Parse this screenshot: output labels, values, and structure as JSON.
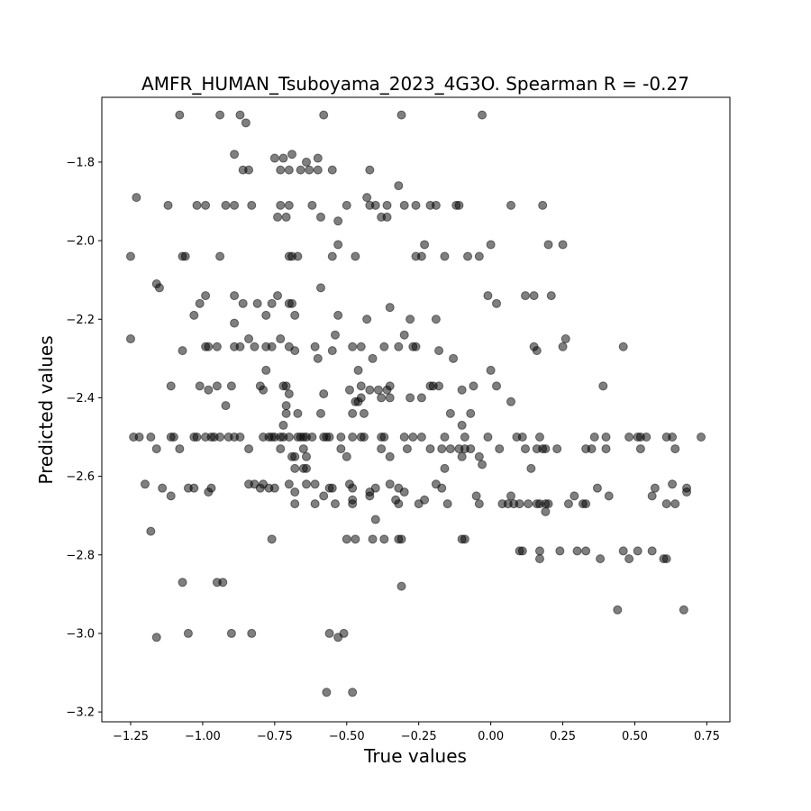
{
  "chart_data": {
    "type": "scatter",
    "title": "AMFR_HUMAN_Tsuboyama_2023_4G3O. Spearman R = -0.27",
    "xlabel": "True values",
    "ylabel": "Predicted values",
    "xlim": [
      -1.35,
      0.83
    ],
    "ylim": [
      -3.225,
      -1.635
    ],
    "x_ticks": [
      -1.25,
      -1.0,
      -0.75,
      -0.5,
      -0.25,
      0.0,
      0.25,
      0.5,
      0.75
    ],
    "x_tick_labels": [
      "−1.25",
      "−1.00",
      "−0.75",
      "−0.50",
      "−0.25",
      "0.00",
      "0.25",
      "0.50",
      "0.75"
    ],
    "y_ticks": [
      -3.2,
      -3.0,
      -2.8,
      -2.6,
      -2.4,
      -2.2,
      -2.0,
      -1.8
    ],
    "y_tick_labels": [
      "−3.2",
      "−3.0",
      "−2.8",
      "−2.6",
      "−2.4",
      "−2.2",
      "−2.0",
      "−1.8"
    ],
    "grid": false,
    "marker_color": "#000000",
    "marker_alpha": 0.5,
    "points": [
      [
        -1.08,
        -1.68
      ],
      [
        -0.94,
        -1.68
      ],
      [
        -0.87,
        -1.68
      ],
      [
        -0.58,
        -1.68
      ],
      [
        -0.31,
        -1.68
      ],
      [
        -0.03,
        -1.68
      ],
      [
        -0.85,
        -1.7
      ],
      [
        -0.89,
        -1.78
      ],
      [
        -0.72,
        -1.79
      ],
      [
        -0.69,
        -1.78
      ],
      [
        -0.75,
        -1.79
      ],
      [
        -0.6,
        -1.79
      ],
      [
        -0.64,
        -1.8
      ],
      [
        -0.86,
        -1.82
      ],
      [
        -0.84,
        -1.82
      ],
      [
        -0.73,
        -1.82
      ],
      [
        -0.7,
        -1.82
      ],
      [
        -0.66,
        -1.82
      ],
      [
        -0.63,
        -1.82
      ],
      [
        -0.6,
        -1.82
      ],
      [
        -0.55,
        -1.82
      ],
      [
        -0.42,
        -1.82
      ],
      [
        -0.32,
        -1.86
      ],
      [
        -1.23,
        -1.89
      ],
      [
        -0.43,
        -1.89
      ],
      [
        -1.12,
        -1.91
      ],
      [
        -1.02,
        -1.91
      ],
      [
        -0.99,
        -1.91
      ],
      [
        -0.92,
        -1.91
      ],
      [
        -0.89,
        -1.91
      ],
      [
        -0.83,
        -1.91
      ],
      [
        -0.73,
        -1.91
      ],
      [
        -0.7,
        -1.91
      ],
      [
        -0.62,
        -1.91
      ],
      [
        -0.5,
        -1.91
      ],
      [
        -0.42,
        -1.91
      ],
      [
        -0.4,
        -1.91
      ],
      [
        -0.36,
        -1.91
      ],
      [
        -0.3,
        -1.91
      ],
      [
        -0.26,
        -1.91
      ],
      [
        -0.21,
        -1.91
      ],
      [
        -0.19,
        -1.91
      ],
      [
        -0.12,
        -1.91
      ],
      [
        -0.11,
        -1.91
      ],
      [
        0.07,
        -1.91
      ],
      [
        0.18,
        -1.91
      ],
      [
        -0.74,
        -1.94
      ],
      [
        -0.71,
        -1.94
      ],
      [
        -0.59,
        -1.94
      ],
      [
        -0.53,
        -1.95
      ],
      [
        -0.38,
        -1.94
      ],
      [
        -0.36,
        -1.94
      ],
      [
        -0.53,
        -2.01
      ],
      [
        -0.23,
        -2.01
      ],
      [
        0.0,
        -2.01
      ],
      [
        0.2,
        -2.01
      ],
      [
        0.25,
        -2.01
      ],
      [
        -1.25,
        -2.04
      ],
      [
        -1.07,
        -2.04
      ],
      [
        -1.06,
        -2.04
      ],
      [
        -0.94,
        -2.04
      ],
      [
        -0.7,
        -2.04
      ],
      [
        -0.69,
        -2.04
      ],
      [
        -0.67,
        -2.04
      ],
      [
        -0.55,
        -2.04
      ],
      [
        -0.47,
        -2.04
      ],
      [
        -0.26,
        -2.04
      ],
      [
        -0.24,
        -2.04
      ],
      [
        -0.16,
        -2.04
      ],
      [
        -0.08,
        -2.04
      ],
      [
        -0.04,
        -2.04
      ],
      [
        -1.16,
        -2.11
      ],
      [
        -1.15,
        -2.12
      ],
      [
        -0.59,
        -2.12
      ],
      [
        -0.99,
        -2.14
      ],
      [
        -0.89,
        -2.14
      ],
      [
        -0.74,
        -2.14
      ],
      [
        -0.01,
        -2.14
      ],
      [
        0.12,
        -2.14
      ],
      [
        0.15,
        -2.14
      ],
      [
        0.21,
        -2.14
      ],
      [
        -1.01,
        -2.16
      ],
      [
        -0.86,
        -2.16
      ],
      [
        -0.81,
        -2.16
      ],
      [
        -0.76,
        -2.16
      ],
      [
        -0.69,
        -2.16
      ],
      [
        -0.7,
        -2.16
      ],
      [
        0.02,
        -2.16
      ],
      [
        -0.35,
        -2.17
      ],
      [
        -1.03,
        -2.19
      ],
      [
        -0.78,
        -2.19
      ],
      [
        -0.68,
        -2.19
      ],
      [
        -0.53,
        -2.19
      ],
      [
        -0.43,
        -2.2
      ],
      [
        -0.28,
        -2.2
      ],
      [
        -0.19,
        -2.2
      ],
      [
        -0.89,
        -2.21
      ],
      [
        -1.25,
        -2.25
      ],
      [
        -0.84,
        -2.25
      ],
      [
        -0.78,
        -2.27
      ],
      [
        -0.54,
        -2.24
      ],
      [
        -0.3,
        -2.24
      ],
      [
        0.26,
        -2.25
      ],
      [
        -0.73,
        -2.25
      ],
      [
        -1.07,
        -2.28
      ],
      [
        -0.99,
        -2.27
      ],
      [
        -0.98,
        -2.27
      ],
      [
        -0.95,
        -2.27
      ],
      [
        -0.89,
        -2.27
      ],
      [
        -0.87,
        -2.27
      ],
      [
        -0.82,
        -2.27
      ],
      [
        -0.76,
        -2.27
      ],
      [
        -0.7,
        -2.27
      ],
      [
        -0.68,
        -2.28
      ],
      [
        -0.61,
        -2.27
      ],
      [
        -0.55,
        -2.28
      ],
      [
        -0.48,
        -2.27
      ],
      [
        -0.45,
        -2.27
      ],
      [
        -0.37,
        -2.27
      ],
      [
        -0.32,
        -2.27
      ],
      [
        -0.27,
        -2.27
      ],
      [
        -0.26,
        -2.27
      ],
      [
        -0.18,
        -2.28
      ],
      [
        0.15,
        -2.27
      ],
      [
        0.16,
        -2.28
      ],
      [
        0.25,
        -2.27
      ],
      [
        0.46,
        -2.27
      ],
      [
        -0.6,
        -2.3
      ],
      [
        -0.41,
        -2.3
      ],
      [
        -0.13,
        -2.3
      ],
      [
        -0.78,
        -2.33
      ],
      [
        -0.46,
        -2.33
      ],
      [
        0.0,
        -2.33
      ],
      [
        -1.11,
        -2.37
      ],
      [
        -1.01,
        -2.37
      ],
      [
        -0.98,
        -2.38
      ],
      [
        -0.95,
        -2.37
      ],
      [
        -0.9,
        -2.37
      ],
      [
        -0.8,
        -2.37
      ],
      [
        -0.79,
        -2.38
      ],
      [
        -0.72,
        -2.37
      ],
      [
        -0.71,
        -2.37
      ],
      [
        -0.49,
        -2.38
      ],
      [
        -0.45,
        -2.37
      ],
      [
        -0.42,
        -2.38
      ],
      [
        -0.39,
        -2.38
      ],
      [
        -0.36,
        -2.38
      ],
      [
        -0.35,
        -2.37
      ],
      [
        -0.21,
        -2.37
      ],
      [
        -0.2,
        -2.37
      ],
      [
        -0.18,
        -2.37
      ],
      [
        -0.1,
        -2.38
      ],
      [
        -0.06,
        -2.37
      ],
      [
        0.02,
        -2.37
      ],
      [
        0.39,
        -2.37
      ],
      [
        -0.7,
        -2.39
      ],
      [
        -0.58,
        -2.39
      ],
      [
        -0.38,
        -2.4
      ],
      [
        -0.35,
        -2.4
      ],
      [
        -0.28,
        -2.4
      ],
      [
        -0.24,
        -2.4
      ],
      [
        -0.45,
        -2.4
      ],
      [
        -0.47,
        -2.41
      ],
      [
        -0.46,
        -2.41
      ],
      [
        0.07,
        -2.41
      ],
      [
        -0.92,
        -2.42
      ],
      [
        -0.71,
        -2.42
      ],
      [
        -0.71,
        -2.44
      ],
      [
        -0.67,
        -2.44
      ],
      [
        -0.59,
        -2.44
      ],
      [
        -0.48,
        -2.44
      ],
      [
        -0.44,
        -2.44
      ],
      [
        -0.14,
        -2.44
      ],
      [
        -0.07,
        -2.44
      ],
      [
        -0.72,
        -2.47
      ],
      [
        -0.1,
        -2.47
      ],
      [
        -1.24,
        -2.5
      ],
      [
        -1.22,
        -2.5
      ],
      [
        -1.18,
        -2.5
      ],
      [
        -1.11,
        -2.5
      ],
      [
        -1.1,
        -2.5
      ],
      [
        -1.03,
        -2.5
      ],
      [
        -1.02,
        -2.5
      ],
      [
        -0.99,
        -2.5
      ],
      [
        -0.97,
        -2.5
      ],
      [
        -0.96,
        -2.5
      ],
      [
        -0.94,
        -2.5
      ],
      [
        -0.91,
        -2.5
      ],
      [
        -0.89,
        -2.5
      ],
      [
        -0.87,
        -2.5
      ],
      [
        -0.79,
        -2.5
      ],
      [
        -0.77,
        -2.5
      ],
      [
        -0.76,
        -2.5
      ],
      [
        -0.75,
        -2.5
      ],
      [
        -0.73,
        -2.5
      ],
      [
        -0.72,
        -2.5
      ],
      [
        -0.7,
        -2.5
      ],
      [
        -0.67,
        -2.5
      ],
      [
        -0.66,
        -2.5
      ],
      [
        -0.65,
        -2.5
      ],
      [
        -0.64,
        -2.5
      ],
      [
        -0.62,
        -2.5
      ],
      [
        -0.58,
        -2.5
      ],
      [
        -0.57,
        -2.5
      ],
      [
        -0.56,
        -2.5
      ],
      [
        -0.52,
        -2.5
      ],
      [
        -0.48,
        -2.5
      ],
      [
        -0.45,
        -2.5
      ],
      [
        -0.44,
        -2.5
      ],
      [
        -0.38,
        -2.5
      ],
      [
        -0.37,
        -2.5
      ],
      [
        -0.3,
        -2.5
      ],
      [
        -0.27,
        -2.5
      ],
      [
        -0.24,
        -2.5
      ],
      [
        -0.16,
        -2.5
      ],
      [
        -0.09,
        -2.5
      ],
      [
        -0.01,
        -2.5
      ],
      [
        0.09,
        -2.5
      ],
      [
        0.11,
        -2.5
      ],
      [
        0.17,
        -2.5
      ],
      [
        0.36,
        -2.5
      ],
      [
        0.4,
        -2.5
      ],
      [
        0.48,
        -2.5
      ],
      [
        0.51,
        -2.5
      ],
      [
        0.52,
        -2.5
      ],
      [
        0.54,
        -2.5
      ],
      [
        0.61,
        -2.5
      ],
      [
        0.63,
        -2.5
      ],
      [
        0.73,
        -2.5
      ],
      [
        -1.16,
        -2.53
      ],
      [
        -1.08,
        -2.53
      ],
      [
        -0.84,
        -2.53
      ],
      [
        -0.73,
        -2.53
      ],
      [
        -0.65,
        -2.53
      ],
      [
        -0.52,
        -2.53
      ],
      [
        -0.38,
        -2.53
      ],
      [
        -0.29,
        -2.53
      ],
      [
        -0.21,
        -2.53
      ],
      [
        -0.17,
        -2.53
      ],
      [
        -0.14,
        -2.53
      ],
      [
        -0.11,
        -2.53
      ],
      [
        -0.09,
        -2.53
      ],
      [
        -0.07,
        -2.53
      ],
      [
        0.03,
        -2.53
      ],
      [
        0.12,
        -2.53
      ],
      [
        0.16,
        -2.53
      ],
      [
        0.18,
        -2.53
      ],
      [
        0.19,
        -2.53
      ],
      [
        0.23,
        -2.53
      ],
      [
        0.33,
        -2.53
      ],
      [
        0.35,
        -2.53
      ],
      [
        0.4,
        -2.53
      ],
      [
        0.52,
        -2.53
      ],
      [
        0.64,
        -2.53
      ],
      [
        -0.69,
        -2.55
      ],
      [
        -0.68,
        -2.55
      ],
      [
        -0.64,
        -2.55
      ],
      [
        -0.5,
        -2.55
      ],
      [
        -0.35,
        -2.55
      ],
      [
        -0.1,
        -2.55
      ],
      [
        -0.04,
        -2.55
      ],
      [
        -0.03,
        -2.57
      ],
      [
        -0.68,
        -2.58
      ],
      [
        -0.65,
        -2.58
      ],
      [
        -0.64,
        -2.58
      ],
      [
        -0.16,
        -2.58
      ],
      [
        0.14,
        -2.58
      ],
      [
        -1.2,
        -2.62
      ],
      [
        -1.14,
        -2.63
      ],
      [
        -1.05,
        -2.63
      ],
      [
        -1.03,
        -2.63
      ],
      [
        -0.98,
        -2.64
      ],
      [
        -0.97,
        -2.63
      ],
      [
        -0.84,
        -2.62
      ],
      [
        -0.82,
        -2.62
      ],
      [
        -0.8,
        -2.63
      ],
      [
        -0.79,
        -2.62
      ],
      [
        -0.77,
        -2.63
      ],
      [
        -0.75,
        -2.63
      ],
      [
        -0.7,
        -2.62
      ],
      [
        -0.68,
        -2.64
      ],
      [
        -0.64,
        -2.62
      ],
      [
        -0.61,
        -2.62
      ],
      [
        -0.56,
        -2.63
      ],
      [
        -0.55,
        -2.63
      ],
      [
        -0.49,
        -2.62
      ],
      [
        -0.48,
        -2.63
      ],
      [
        -0.42,
        -2.64
      ],
      [
        -0.4,
        -2.63
      ],
      [
        -0.35,
        -2.62
      ],
      [
        -0.32,
        -2.63
      ],
      [
        -0.3,
        -2.64
      ],
      [
        -0.19,
        -2.62
      ],
      [
        -0.17,
        -2.63
      ],
      [
        0.37,
        -2.63
      ],
      [
        0.63,
        -2.62
      ],
      [
        0.68,
        -2.63
      ],
      [
        0.68,
        -2.64
      ],
      [
        -1.11,
        -2.65
      ],
      [
        -0.58,
        -2.65
      ],
      [
        -0.48,
        -2.66
      ],
      [
        -0.42,
        -2.65
      ],
      [
        -0.33,
        -2.66
      ],
      [
        -0.23,
        -2.66
      ],
      [
        -0.05,
        -2.65
      ],
      [
        0.07,
        -2.65
      ],
      [
        0.29,
        -2.65
      ],
      [
        0.41,
        -2.65
      ],
      [
        0.56,
        -2.65
      ],
      [
        0.57,
        -2.63
      ],
      [
        -0.68,
        -2.67
      ],
      [
        -0.61,
        -2.67
      ],
      [
        -0.54,
        -2.67
      ],
      [
        -0.48,
        -2.67
      ],
      [
        -0.32,
        -2.67
      ],
      [
        -0.25,
        -2.67
      ],
      [
        -0.15,
        -2.67
      ],
      [
        -0.04,
        -2.67
      ],
      [
        0.04,
        -2.67
      ],
      [
        0.06,
        -2.67
      ],
      [
        0.08,
        -2.67
      ],
      [
        0.1,
        -2.67
      ],
      [
        0.13,
        -2.67
      ],
      [
        0.16,
        -2.67
      ],
      [
        0.17,
        -2.67
      ],
      [
        0.19,
        -2.67
      ],
      [
        0.2,
        -2.67
      ],
      [
        0.27,
        -2.67
      ],
      [
        0.32,
        -2.67
      ],
      [
        0.33,
        -2.67
      ],
      [
        0.61,
        -2.67
      ],
      [
        0.64,
        -2.67
      ],
      [
        0.19,
        -2.69
      ],
      [
        -0.4,
        -2.71
      ],
      [
        -1.18,
        -2.74
      ],
      [
        -0.76,
        -2.76
      ],
      [
        -0.5,
        -2.76
      ],
      [
        -0.47,
        -2.76
      ],
      [
        -0.41,
        -2.76
      ],
      [
        -0.37,
        -2.76
      ],
      [
        -0.32,
        -2.76
      ],
      [
        -0.31,
        -2.76
      ],
      [
        -0.1,
        -2.76
      ],
      [
        -0.09,
        -2.76
      ],
      [
        0.1,
        -2.79
      ],
      [
        0.11,
        -2.79
      ],
      [
        0.17,
        -2.79
      ],
      [
        0.24,
        -2.79
      ],
      [
        0.3,
        -2.79
      ],
      [
        0.33,
        -2.79
      ],
      [
        0.46,
        -2.79
      ],
      [
        0.51,
        -2.79
      ],
      [
        0.56,
        -2.79
      ],
      [
        0.17,
        -2.81
      ],
      [
        0.38,
        -2.81
      ],
      [
        0.48,
        -2.81
      ],
      [
        0.6,
        -2.81
      ],
      [
        0.61,
        -2.81
      ],
      [
        -1.07,
        -2.87
      ],
      [
        -0.95,
        -2.87
      ],
      [
        -0.93,
        -2.87
      ],
      [
        -0.31,
        -2.88
      ],
      [
        0.44,
        -2.94
      ],
      [
        0.67,
        -2.94
      ],
      [
        -1.16,
        -3.01
      ],
      [
        -1.05,
        -3.0
      ],
      [
        -0.9,
        -3.0
      ],
      [
        -0.83,
        -3.0
      ],
      [
        -0.56,
        -3.0
      ],
      [
        -0.53,
        -3.01
      ],
      [
        -0.51,
        -3.0
      ],
      [
        -0.57,
        -3.15
      ],
      [
        -0.48,
        -3.15
      ]
    ]
  }
}
